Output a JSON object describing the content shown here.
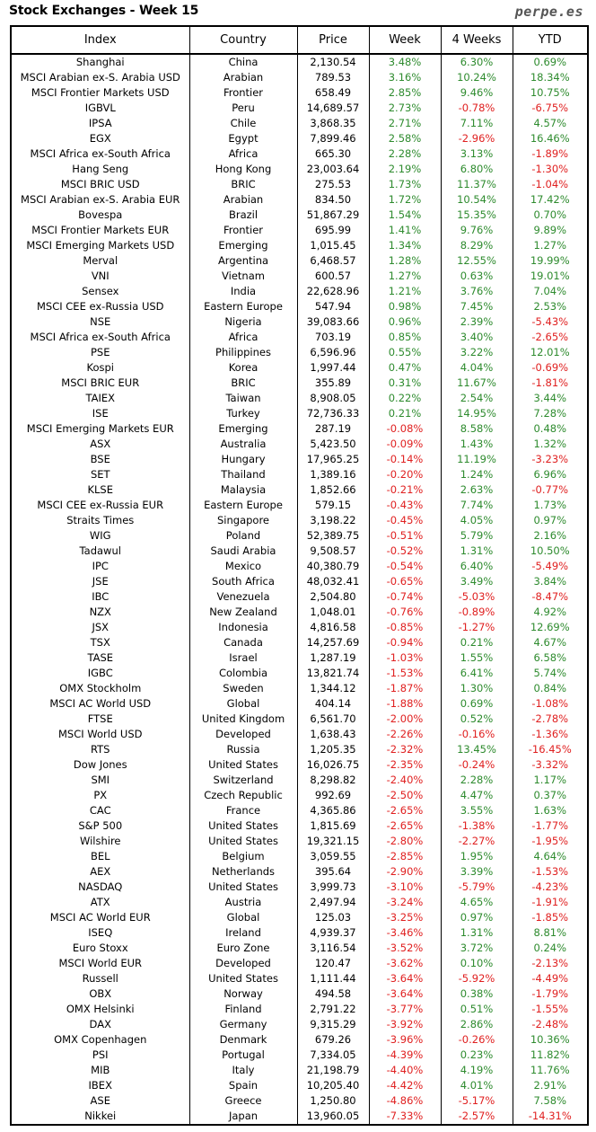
{
  "title": "Stock Exchanges - Week 15",
  "site": "perpe.es",
  "colors": {
    "positive": "#2e8b2e",
    "negative": "#e02020"
  },
  "columns": [
    "Index",
    "Country",
    "Price",
    "Week",
    "4 Weeks",
    "YTD"
  ],
  "rows": [
    [
      "Shanghai",
      "China",
      "2,130.54",
      "3.48%",
      "6.30%",
      "0.69%"
    ],
    [
      "MSCI Arabian ex-S. Arabia USD",
      "Arabian",
      "789.53",
      "3.16%",
      "10.24%",
      "18.34%"
    ],
    [
      "MSCI Frontier Markets USD",
      "Frontier",
      "658.49",
      "2.85%",
      "9.46%",
      "10.75%"
    ],
    [
      "IGBVL",
      "Peru",
      "14,689.57",
      "2.73%",
      "-0.78%",
      "-6.75%"
    ],
    [
      "IPSA",
      "Chile",
      "3,868.35",
      "2.71%",
      "7.11%",
      "4.57%"
    ],
    [
      "EGX",
      "Egypt",
      "7,899.46",
      "2.58%",
      "-2.96%",
      "16.46%"
    ],
    [
      "MSCI Africa ex-South Africa",
      "Africa",
      "665.30",
      "2.28%",
      "3.13%",
      "-1.89%"
    ],
    [
      "Hang Seng",
      "Hong Kong",
      "23,003.64",
      "2.19%",
      "6.80%",
      "-1.30%"
    ],
    [
      "MSCI BRIC USD",
      "BRIC",
      "275.53",
      "1.73%",
      "11.37%",
      "-1.04%"
    ],
    [
      "MSCI Arabian ex-S. Arabia EUR",
      "Arabian",
      "834.50",
      "1.72%",
      "10.54%",
      "17.42%"
    ],
    [
      "Bovespa",
      "Brazil",
      "51,867.29",
      "1.54%",
      "15.35%",
      "0.70%"
    ],
    [
      "MSCI Frontier Markets EUR",
      "Frontier",
      "695.99",
      "1.41%",
      "9.76%",
      "9.89%"
    ],
    [
      "MSCI Emerging Markets USD",
      "Emerging",
      "1,015.45",
      "1.34%",
      "8.29%",
      "1.27%"
    ],
    [
      "Merval",
      "Argentina",
      "6,468.57",
      "1.28%",
      "12.55%",
      "19.99%"
    ],
    [
      "VNI",
      "Vietnam",
      "600.57",
      "1.27%",
      "0.63%",
      "19.01%"
    ],
    [
      "Sensex",
      "India",
      "22,628.96",
      "1.21%",
      "3.76%",
      "7.04%"
    ],
    [
      "MSCI CEE ex-Russia USD",
      "Eastern Europe",
      "547.94",
      "0.98%",
      "7.45%",
      "2.53%"
    ],
    [
      "NSE",
      "Nigeria",
      "39,083.66",
      "0.96%",
      "2.39%",
      "-5.43%"
    ],
    [
      "MSCI Africa ex-South Africa",
      "Africa",
      "703.19",
      "0.85%",
      "3.40%",
      "-2.65%"
    ],
    [
      "PSE",
      "Philippines",
      "6,596.96",
      "0.55%",
      "3.22%",
      "12.01%"
    ],
    [
      "Kospi",
      "Korea",
      "1,997.44",
      "0.47%",
      "4.04%",
      "-0.69%"
    ],
    [
      "MSCI BRIC EUR",
      "BRIC",
      "355.89",
      "0.31%",
      "11.67%",
      "-1.81%"
    ],
    [
      "TAIEX",
      "Taiwan",
      "8,908.05",
      "0.22%",
      "2.54%",
      "3.44%"
    ],
    [
      "ISE",
      "Turkey",
      "72,736.33",
      "0.21%",
      "14.95%",
      "7.28%"
    ],
    [
      "MSCI Emerging Markets EUR",
      "Emerging",
      "287.19",
      "-0.08%",
      "8.58%",
      "0.48%"
    ],
    [
      "ASX",
      "Australia",
      "5,423.50",
      "-0.09%",
      "1.43%",
      "1.32%"
    ],
    [
      "BSE",
      "Hungary",
      "17,965.25",
      "-0.14%",
      "11.19%",
      "-3.23%"
    ],
    [
      "SET",
      "Thailand",
      "1,389.16",
      "-0.20%",
      "1.24%",
      "6.96%"
    ],
    [
      "KLSE",
      "Malaysia",
      "1,852.66",
      "-0.21%",
      "2.63%",
      "-0.77%"
    ],
    [
      "MSCI CEE ex-Russia EUR",
      "Eastern Europe",
      "579.15",
      "-0.43%",
      "7.74%",
      "1.73%"
    ],
    [
      "Straits Times",
      "Singapore",
      "3,198.22",
      "-0.45%",
      "4.05%",
      "0.97%"
    ],
    [
      "WIG",
      "Poland",
      "52,389.75",
      "-0.51%",
      "5.79%",
      "2.16%"
    ],
    [
      "Tadawul",
      "Saudi Arabia",
      "9,508.57",
      "-0.52%",
      "1.31%",
      "10.50%"
    ],
    [
      "IPC",
      "Mexico",
      "40,380.79",
      "-0.54%",
      "6.40%",
      "-5.49%"
    ],
    [
      "JSE",
      "South Africa",
      "48,032.41",
      "-0.65%",
      "3.49%",
      "3.84%"
    ],
    [
      "IBC",
      "Venezuela",
      "2,504.80",
      "-0.74%",
      "-5.03%",
      "-8.47%"
    ],
    [
      "NZX",
      "New Zealand",
      "1,048.01",
      "-0.76%",
      "-0.89%",
      "4.92%"
    ],
    [
      "JSX",
      "Indonesia",
      "4,816.58",
      "-0.85%",
      "-1.27%",
      "12.69%"
    ],
    [
      "TSX",
      "Canada",
      "14,257.69",
      "-0.94%",
      "0.21%",
      "4.67%"
    ],
    [
      "TASE",
      "Israel",
      "1,287.19",
      "-1.03%",
      "1.55%",
      "6.58%"
    ],
    [
      "IGBC",
      "Colombia",
      "13,821.74",
      "-1.53%",
      "6.41%",
      "5.74%"
    ],
    [
      "OMX Stockholm",
      "Sweden",
      "1,344.12",
      "-1.87%",
      "1.30%",
      "0.84%"
    ],
    [
      "MSCI AC World USD",
      "Global",
      "404.14",
      "-1.88%",
      "0.69%",
      "-1.08%"
    ],
    [
      "FTSE",
      "United Kingdom",
      "6,561.70",
      "-2.00%",
      "0.52%",
      "-2.78%"
    ],
    [
      "MSCI World USD",
      "Developed",
      "1,638.43",
      "-2.26%",
      "-0.16%",
      "-1.36%"
    ],
    [
      "RTS",
      "Russia",
      "1,205.35",
      "-2.32%",
      "13.45%",
      "-16.45%"
    ],
    [
      "Dow Jones",
      "United States",
      "16,026.75",
      "-2.35%",
      "-0.24%",
      "-3.32%"
    ],
    [
      "SMI",
      "Switzerland",
      "8,298.82",
      "-2.40%",
      "2.28%",
      "1.17%"
    ],
    [
      "PX",
      "Czech Republic",
      "992.69",
      "-2.50%",
      "4.47%",
      "0.37%"
    ],
    [
      "CAC",
      "France",
      "4,365.86",
      "-2.65%",
      "3.55%",
      "1.63%"
    ],
    [
      "S&P 500",
      "United States",
      "1,815.69",
      "-2.65%",
      "-1.38%",
      "-1.77%"
    ],
    [
      "Wilshire",
      "United States",
      "19,321.15",
      "-2.80%",
      "-2.27%",
      "-1.95%"
    ],
    [
      "BEL",
      "Belgium",
      "3,059.55",
      "-2.85%",
      "1.95%",
      "4.64%"
    ],
    [
      "AEX",
      "Netherlands",
      "395.64",
      "-2.90%",
      "3.39%",
      "-1.53%"
    ],
    [
      "NASDAQ",
      "United States",
      "3,999.73",
      "-3.10%",
      "-5.79%",
      "-4.23%"
    ],
    [
      "ATX",
      "Austria",
      "2,497.94",
      "-3.24%",
      "4.65%",
      "-1.91%"
    ],
    [
      "MSCI AC World EUR",
      "Global",
      "125.03",
      "-3.25%",
      "0.97%",
      "-1.85%"
    ],
    [
      "ISEQ",
      "Ireland",
      "4,939.37",
      "-3.46%",
      "1.31%",
      "8.81%"
    ],
    [
      "Euro Stoxx",
      "Euro Zone",
      "3,116.54",
      "-3.52%",
      "3.72%",
      "0.24%"
    ],
    [
      "MSCI World EUR",
      "Developed",
      "120.47",
      "-3.62%",
      "0.10%",
      "-2.13%"
    ],
    [
      "Russell",
      "United States",
      "1,111.44",
      "-3.64%",
      "-5.92%",
      "-4.49%"
    ],
    [
      "OBX",
      "Norway",
      "494.58",
      "-3.64%",
      "0.38%",
      "-1.79%"
    ],
    [
      "OMX Helsinki",
      "Finland",
      "2,791.22",
      "-3.77%",
      "0.51%",
      "-1.55%"
    ],
    [
      "DAX",
      "Germany",
      "9,315.29",
      "-3.92%",
      "2.86%",
      "-2.48%"
    ],
    [
      "OMX Copenhagen",
      "Denmark",
      "679.26",
      "-3.96%",
      "-0.26%",
      "10.36%"
    ],
    [
      "PSI",
      "Portugal",
      "7,334.05",
      "-4.39%",
      "0.23%",
      "11.82%"
    ],
    [
      "MIB",
      "Italy",
      "21,198.79",
      "-4.40%",
      "4.19%",
      "11.76%"
    ],
    [
      "IBEX",
      "Spain",
      "10,205.40",
      "-4.42%",
      "4.01%",
      "2.91%"
    ],
    [
      "ASE",
      "Greece",
      "1,250.80",
      "-4.86%",
      "-5.17%",
      "7.58%"
    ],
    [
      "Nikkei",
      "Japan",
      "13,960.05",
      "-7.33%",
      "-2.57%",
      "-14.31%"
    ]
  ]
}
